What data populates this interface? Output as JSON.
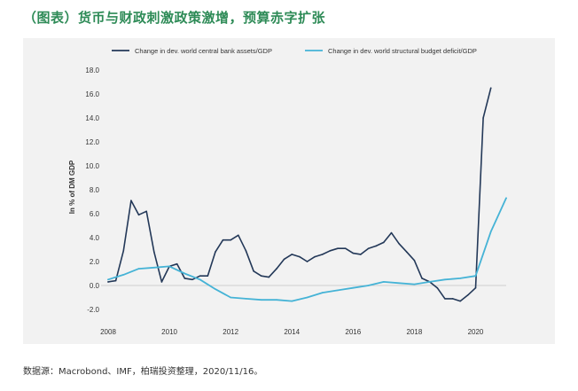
{
  "title": "（图表）货币与财政刺激政策激增，预算赤字扩张",
  "source": "数据源：Macrobond、IMF，柏瑞投资整理，2020/11/16。",
  "colors": {
    "title": "#2e8b57",
    "series1": "#233858",
    "series2": "#45b3d6",
    "panel": "#f2f2f2"
  },
  "chart_data": {
    "type": "line",
    "title": "",
    "xlabel": "",
    "ylabel": "In % of DM GDP",
    "xlim": [
      2008,
      2021
    ],
    "ylim": [
      -2.0,
      18.0
    ],
    "yticks": [
      -2.0,
      0.0,
      2.0,
      4.0,
      6.0,
      8.0,
      10.0,
      12.0,
      14.0,
      16.0,
      18.0
    ],
    "ytick_labels": [
      "-2.0",
      "0.0",
      "2.0",
      "4.0",
      "6.0",
      "8.0",
      "10.0",
      "12.0",
      "14.0",
      "16.0",
      "18.0"
    ],
    "xticks": [
      2008,
      2010,
      2012,
      2014,
      2016,
      2018,
      2020
    ],
    "xtick_labels": [
      "2008",
      "2010",
      "2012",
      "2014",
      "2016",
      "2018",
      "2020"
    ],
    "grid": false,
    "legend_position": "top",
    "series": [
      {
        "name": "Change in dev. world central bank assets/GDP",
        "color": "#233858",
        "x": [
          2008.0,
          2008.25,
          2008.5,
          2008.75,
          2009.0,
          2009.25,
          2009.5,
          2009.75,
          2010.0,
          2010.25,
          2010.5,
          2010.75,
          2011.0,
          2011.25,
          2011.5,
          2011.75,
          2012.0,
          2012.25,
          2012.5,
          2012.75,
          2013.0,
          2013.25,
          2013.5,
          2013.75,
          2014.0,
          2014.25,
          2014.5,
          2014.75,
          2015.0,
          2015.25,
          2015.5,
          2015.75,
          2016.0,
          2016.25,
          2016.5,
          2016.75,
          2017.0,
          2017.25,
          2017.5,
          2017.75,
          2018.0,
          2018.25,
          2018.5,
          2018.75,
          2019.0,
          2019.25,
          2019.5,
          2019.75,
          2020.0,
          2020.25,
          2020.5
        ],
        "y": [
          0.3,
          0.4,
          2.9,
          7.1,
          5.9,
          6.2,
          2.8,
          0.3,
          1.6,
          1.8,
          0.6,
          0.5,
          0.8,
          0.8,
          2.8,
          3.8,
          3.8,
          4.2,
          2.9,
          1.2,
          0.8,
          0.7,
          1.4,
          2.2,
          2.6,
          2.4,
          2.0,
          2.4,
          2.6,
          2.9,
          3.1,
          3.1,
          2.7,
          2.6,
          3.1,
          3.3,
          3.6,
          4.4,
          3.5,
          2.8,
          2.1,
          0.6,
          0.3,
          -0.2,
          -1.1,
          -1.1,
          -1.3,
          -0.8,
          -0.2,
          14.0,
          16.5
        ]
      },
      {
        "name": "Change in dev. world structural budget deficit/GDP",
        "color": "#45b3d6",
        "x": [
          2008.0,
          2008.5,
          2009.0,
          2009.5,
          2010.0,
          2010.5,
          2011.0,
          2011.5,
          2012.0,
          2012.5,
          2013.0,
          2013.5,
          2014.0,
          2014.5,
          2015.0,
          2015.5,
          2016.0,
          2016.5,
          2017.0,
          2017.5,
          2018.0,
          2018.5,
          2019.0,
          2019.5,
          2020.0,
          2020.5,
          2021.0
        ],
        "y": [
          0.5,
          0.9,
          1.4,
          1.5,
          1.6,
          1.0,
          0.5,
          -0.3,
          -1.0,
          -1.1,
          -1.2,
          -1.2,
          -1.3,
          -1.0,
          -0.6,
          -0.4,
          -0.2,
          0.0,
          0.3,
          0.2,
          0.1,
          0.3,
          0.5,
          0.6,
          0.8,
          4.5,
          7.3
        ]
      }
    ]
  }
}
